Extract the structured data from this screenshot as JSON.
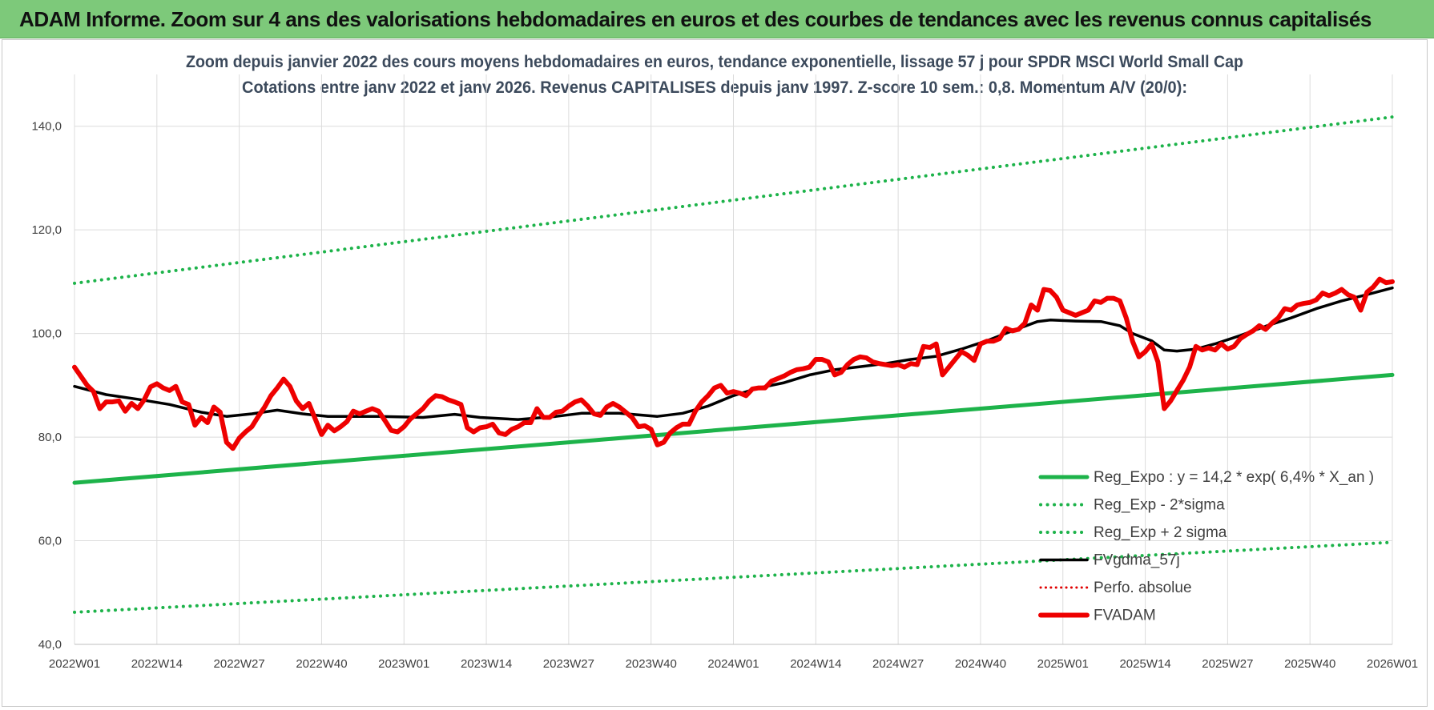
{
  "header": {
    "title": "ADAM Informe. Zoom sur 4 ans des valorisations hebdomadaires en euros et des courbes de tendances avec les revenus connus capitalisés"
  },
  "chart_data": {
    "type": "line",
    "title": "Zoom depuis janvier 2022 des cours moyens hebdomadaires en euros, tendance exponentielle, lissage 57 j pour SPDR MSCI World Small Cap",
    "subtitle": "Cotations entre janv 2022 et janv 2026. Revenus CAPITALISES depuis janv 1997. Z-score 10 sem.: 0,8. Momentum A/V (20/0):",
    "xlabel": "",
    "ylabel": "",
    "ylim": [
      40,
      150
    ],
    "y_ticks": [
      "40,0",
      "60,0",
      "80,0",
      "100,0",
      "120,0",
      "140,0"
    ],
    "x_range": [
      0,
      208
    ],
    "x_ticks": [
      {
        "x": 0,
        "label": "2022W01"
      },
      {
        "x": 13,
        "label": "2022W14"
      },
      {
        "x": 26,
        "label": "2022W27"
      },
      {
        "x": 39,
        "label": "2022W40"
      },
      {
        "x": 52,
        "label": "2023W01"
      },
      {
        "x": 65,
        "label": "2023W14"
      },
      {
        "x": 78,
        "label": "2023W27"
      },
      {
        "x": 91,
        "label": "2023W40"
      },
      {
        "x": 104,
        "label": "2024W01"
      },
      {
        "x": 117,
        "label": "2024W14"
      },
      {
        "x": 130,
        "label": "2024W27"
      },
      {
        "x": 143,
        "label": "2024W40"
      },
      {
        "x": 156,
        "label": "2025W01"
      },
      {
        "x": 169,
        "label": "2025W14"
      },
      {
        "x": 182,
        "label": "2025W27"
      },
      {
        "x": 195,
        "label": "2025W40"
      },
      {
        "x": 208,
        "label": "2026W01"
      }
    ],
    "grid": true,
    "legend_position": "bottom-right",
    "series": [
      {
        "name": "Reg_Expo : y = 14,2 * exp( 6,4% *  X_an )",
        "style": "solid",
        "color": "#1db34a",
        "width": 5,
        "points": [
          [
            0,
            71.2
          ],
          [
            208,
            92.0
          ]
        ]
      },
      {
        "name": "Reg_Exp - 2*sigma",
        "style": "dotted",
        "color": "#1db34a",
        "width": 4,
        "points": [
          [
            0,
            46.2
          ],
          [
            208,
            59.7
          ]
        ]
      },
      {
        "name": "Reg_Exp + 2 sigma",
        "style": "dotted",
        "color": "#1db34a",
        "width": 4,
        "points": [
          [
            0,
            109.7
          ],
          [
            208,
            141.8
          ]
        ]
      },
      {
        "name": "FVgdma_57j",
        "style": "solid",
        "color": "#000000",
        "width": 3.5,
        "points": [
          [
            0,
            89.8
          ],
          [
            5,
            88.2
          ],
          [
            10,
            87.3
          ],
          [
            15,
            86.3
          ],
          [
            20,
            84.8
          ],
          [
            24,
            84.0
          ],
          [
            28,
            84.5
          ],
          [
            32,
            85.2
          ],
          [
            36,
            84.5
          ],
          [
            40,
            84.0
          ],
          [
            48,
            84.0
          ],
          [
            55,
            83.8
          ],
          [
            60,
            84.4
          ],
          [
            64,
            83.8
          ],
          [
            70,
            83.4
          ],
          [
            76,
            84.0
          ],
          [
            80,
            84.6
          ],
          [
            86,
            84.6
          ],
          [
            92,
            84.0
          ],
          [
            96,
            84.6
          ],
          [
            100,
            86.0
          ],
          [
            104,
            88.0
          ],
          [
            108,
            89.5
          ],
          [
            112,
            90.5
          ],
          [
            116,
            92.0
          ],
          [
            120,
            93.0
          ],
          [
            124,
            93.6
          ],
          [
            128,
            94.2
          ],
          [
            132,
            95.0
          ],
          [
            136,
            95.6
          ],
          [
            140,
            97.0
          ],
          [
            144,
            98.6
          ],
          [
            148,
            100.5
          ],
          [
            152,
            102.3
          ],
          [
            154,
            102.6
          ],
          [
            158,
            102.4
          ],
          [
            162,
            102.3
          ],
          [
            165,
            101.5
          ],
          [
            167,
            100.0
          ],
          [
            170,
            98.6
          ],
          [
            172,
            96.8
          ],
          [
            174,
            96.6
          ],
          [
            177,
            97.0
          ],
          [
            180,
            98.0
          ],
          [
            184,
            99.6
          ],
          [
            188,
            101.4
          ],
          [
            192,
            103.0
          ],
          [
            196,
            104.8
          ],
          [
            200,
            106.3
          ],
          [
            204,
            107.5
          ],
          [
            208,
            108.8
          ]
        ]
      },
      {
        "name": "Perfo. absolue",
        "style": "dotted",
        "color": "#e00000",
        "width": 3,
        "points": []
      },
      {
        "name": "FVADAM",
        "style": "solid",
        "color": "#ee0000",
        "width": 6,
        "points": [
          [
            0,
            93.5
          ],
          [
            2,
            90.0
          ],
          [
            3,
            88.8
          ],
          [
            4,
            85.5
          ],
          [
            5,
            86.8
          ],
          [
            6,
            86.8
          ],
          [
            7,
            87.0
          ],
          [
            8,
            85.0
          ],
          [
            9,
            86.5
          ],
          [
            10,
            85.5
          ],
          [
            11,
            87.2
          ],
          [
            12,
            89.7
          ],
          [
            13,
            90.3
          ],
          [
            14,
            89.5
          ],
          [
            15,
            89.0
          ],
          [
            16,
            89.8
          ],
          [
            17,
            86.8
          ],
          [
            18,
            86.3
          ],
          [
            19,
            82.3
          ],
          [
            20,
            83.8
          ],
          [
            21,
            82.8
          ],
          [
            22,
            85.8
          ],
          [
            23,
            84.8
          ],
          [
            24,
            79.0
          ],
          [
            25,
            77.8
          ],
          [
            26,
            79.8
          ],
          [
            27,
            81.0
          ],
          [
            28,
            82.0
          ],
          [
            29,
            84.0
          ],
          [
            30,
            85.8
          ],
          [
            31,
            88.0
          ],
          [
            32,
            89.5
          ],
          [
            33,
            91.2
          ],
          [
            34,
            89.8
          ],
          [
            35,
            87.0
          ],
          [
            36,
            85.5
          ],
          [
            37,
            86.5
          ],
          [
            38,
            83.5
          ],
          [
            39,
            80.5
          ],
          [
            40,
            82.3
          ],
          [
            41,
            81.2
          ],
          [
            42,
            82.0
          ],
          [
            43,
            83.0
          ],
          [
            44,
            85.0
          ],
          [
            45,
            84.5
          ],
          [
            46,
            85.0
          ],
          [
            47,
            85.5
          ],
          [
            48,
            85.0
          ],
          [
            49,
            83.2
          ],
          [
            50,
            81.3
          ],
          [
            51,
            81.0
          ],
          [
            52,
            82.0
          ],
          [
            53,
            83.5
          ],
          [
            54,
            84.5
          ],
          [
            55,
            85.5
          ],
          [
            56,
            87.0
          ],
          [
            57,
            88.0
          ],
          [
            58,
            87.8
          ],
          [
            59,
            87.2
          ],
          [
            60,
            86.8
          ],
          [
            61,
            86.3
          ],
          [
            62,
            81.8
          ],
          [
            63,
            81.0
          ],
          [
            64,
            81.8
          ],
          [
            65,
            82.0
          ],
          [
            66,
            82.5
          ],
          [
            67,
            80.8
          ],
          [
            68,
            80.5
          ],
          [
            69,
            81.5
          ],
          [
            70,
            82.0
          ],
          [
            71,
            82.8
          ],
          [
            72,
            82.8
          ],
          [
            73,
            85.5
          ],
          [
            74,
            83.8
          ],
          [
            75,
            83.8
          ],
          [
            76,
            84.8
          ],
          [
            77,
            85.0
          ],
          [
            78,
            86.0
          ],
          [
            79,
            86.8
          ],
          [
            80,
            87.2
          ],
          [
            81,
            86.0
          ],
          [
            82,
            84.5
          ],
          [
            83,
            84.2
          ],
          [
            84,
            85.8
          ],
          [
            85,
            86.5
          ],
          [
            86,
            85.8
          ],
          [
            87,
            84.8
          ],
          [
            88,
            83.8
          ],
          [
            89,
            82.0
          ],
          [
            90,
            82.2
          ],
          [
            91,
            81.5
          ],
          [
            92,
            78.5
          ],
          [
            93,
            79.0
          ],
          [
            94,
            80.8
          ],
          [
            95,
            81.8
          ],
          [
            96,
            82.5
          ],
          [
            97,
            82.5
          ],
          [
            98,
            85.0
          ],
          [
            99,
            86.8
          ],
          [
            100,
            88.0
          ],
          [
            101,
            89.5
          ],
          [
            102,
            90.0
          ],
          [
            103,
            88.5
          ],
          [
            104,
            88.8
          ],
          [
            105,
            88.5
          ],
          [
            106,
            88.0
          ],
          [
            107,
            89.3
          ],
          [
            108,
            89.5
          ],
          [
            109,
            89.5
          ],
          [
            110,
            90.8
          ],
          [
            111,
            91.3
          ],
          [
            112,
            91.8
          ],
          [
            113,
            92.5
          ],
          [
            114,
            93.0
          ],
          [
            115,
            93.2
          ],
          [
            116,
            93.5
          ],
          [
            117,
            95.0
          ],
          [
            118,
            95.0
          ],
          [
            119,
            94.5
          ],
          [
            120,
            92.0
          ],
          [
            121,
            92.5
          ],
          [
            122,
            94.0
          ],
          [
            123,
            95.0
          ],
          [
            124,
            95.5
          ],
          [
            125,
            95.3
          ],
          [
            126,
            94.5
          ],
          [
            127,
            94.2
          ],
          [
            128,
            94.0
          ],
          [
            129,
            93.8
          ],
          [
            130,
            94.0
          ],
          [
            131,
            93.5
          ],
          [
            132,
            94.2
          ],
          [
            133,
            94.0
          ],
          [
            134,
            97.5
          ],
          [
            135,
            97.3
          ],
          [
            136,
            98.0
          ],
          [
            137,
            92.0
          ],
          [
            138,
            93.5
          ],
          [
            139,
            95.0
          ],
          [
            140,
            96.5
          ],
          [
            141,
            95.8
          ],
          [
            142,
            94.8
          ],
          [
            143,
            98.0
          ],
          [
            144,
            98.5
          ],
          [
            145,
            98.5
          ],
          [
            146,
            99.0
          ],
          [
            147,
            101.0
          ],
          [
            148,
            100.5
          ],
          [
            149,
            100.8
          ],
          [
            150,
            102.0
          ],
          [
            151,
            105.5
          ],
          [
            152,
            104.5
          ],
          [
            153,
            108.5
          ],
          [
            154,
            108.3
          ],
          [
            155,
            107.0
          ],
          [
            156,
            104.5
          ],
          [
            157,
            104.0
          ],
          [
            158,
            103.5
          ],
          [
            159,
            104.0
          ],
          [
            160,
            104.5
          ],
          [
            161,
            106.3
          ],
          [
            162,
            106.0
          ],
          [
            163,
            106.8
          ],
          [
            164,
            106.8
          ],
          [
            165,
            106.3
          ],
          [
            166,
            103.0
          ],
          [
            167,
            98.5
          ],
          [
            168,
            95.5
          ],
          [
            169,
            96.5
          ],
          [
            170,
            98.0
          ],
          [
            171,
            94.5
          ],
          [
            172,
            85.5
          ],
          [
            173,
            87.0
          ],
          [
            174,
            89.0
          ],
          [
            175,
            91.0
          ],
          [
            176,
            93.5
          ],
          [
            177,
            97.5
          ],
          [
            178,
            96.8
          ],
          [
            179,
            97.2
          ],
          [
            180,
            96.8
          ],
          [
            181,
            98.0
          ],
          [
            182,
            97.0
          ],
          [
            183,
            97.5
          ],
          [
            184,
            99.0
          ],
          [
            185,
            99.8
          ],
          [
            186,
            100.5
          ],
          [
            187,
            101.5
          ],
          [
            188,
            100.8
          ],
          [
            189,
            102.0
          ],
          [
            190,
            103.0
          ],
          [
            191,
            104.8
          ],
          [
            192,
            104.5
          ],
          [
            193,
            105.5
          ],
          [
            194,
            105.8
          ],
          [
            195,
            106.0
          ],
          [
            196,
            106.5
          ],
          [
            197,
            107.8
          ],
          [
            198,
            107.3
          ],
          [
            199,
            107.8
          ],
          [
            200,
            108.5
          ],
          [
            201,
            107.5
          ],
          [
            202,
            107.0
          ],
          [
            203,
            104.5
          ],
          [
            204,
            108.0
          ],
          [
            205,
            109.0
          ],
          [
            206,
            110.5
          ],
          [
            207,
            109.8
          ],
          [
            208,
            110.0
          ]
        ]
      }
    ]
  }
}
